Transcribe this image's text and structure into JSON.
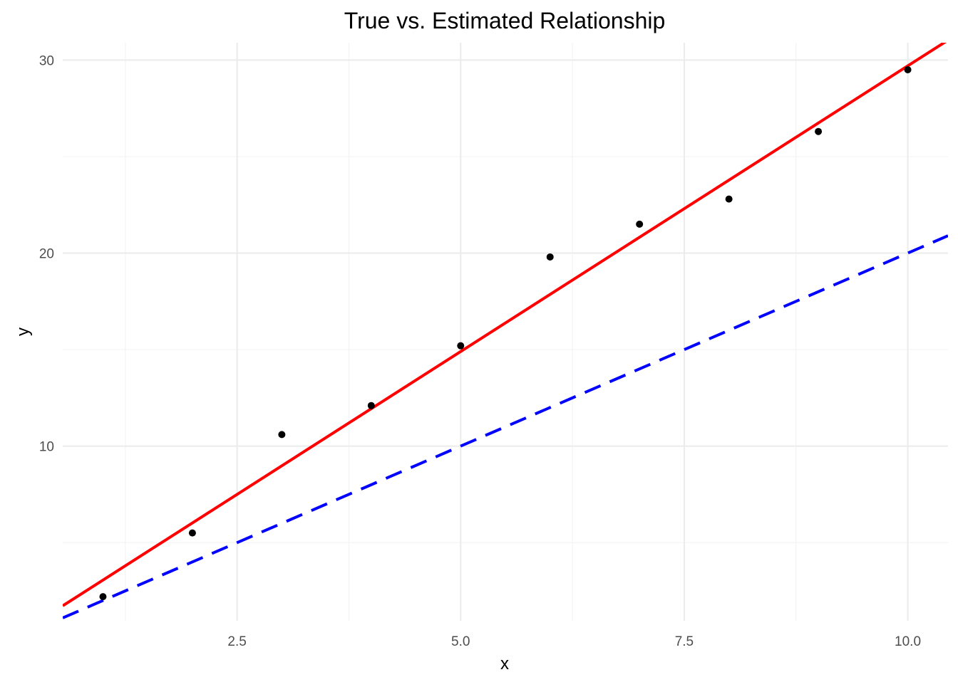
{
  "chart_data": {
    "type": "scatter",
    "title": "True vs. Estimated Relationship",
    "xlabel": "x",
    "ylabel": "y",
    "xlim": [
      0.55,
      10.45
    ],
    "ylim": [
      0.95,
      30.9
    ],
    "x_major_ticks": [
      2.5,
      5.0,
      7.5,
      10.0
    ],
    "x_minor_ticks": [
      1.25,
      3.75,
      6.25,
      8.75
    ],
    "y_major_ticks": [
      10,
      20,
      30
    ],
    "y_minor_ticks": [
      5,
      15,
      25
    ],
    "x_tick_labels": [
      "2.5",
      "5.0",
      "7.5",
      "10.0"
    ],
    "y_tick_labels": [
      "10",
      "20",
      "30"
    ],
    "grid": true,
    "legend": "none",
    "series": [
      {
        "kind": "points",
        "color": "#000000",
        "x": [
          1,
          2,
          3,
          4,
          5,
          6,
          7,
          8,
          9,
          10
        ],
        "y": [
          2.2,
          5.5,
          10.6,
          12.1,
          15.2,
          19.8,
          21.5,
          22.8,
          26.3,
          29.5
        ]
      },
      {
        "kind": "line",
        "style": "solid",
        "color": "#ff0000",
        "intercept": 0.1,
        "slope": 2.96
      },
      {
        "kind": "line",
        "style": "dashed",
        "color": "#0000ff",
        "intercept": 0,
        "slope": 2
      }
    ]
  }
}
